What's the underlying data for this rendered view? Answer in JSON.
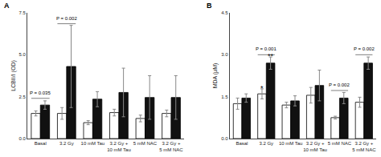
{
  "chart_data": [
    {
      "type": "bar",
      "title": "A",
      "categories": [
        "Basal",
        "3.2 Gy",
        "10 mM Tau",
        "3.2 Gy +\n10 mM Tau",
        "5 mM NAC",
        "3.2 Gy +\n5 mM NAC"
      ],
      "series": [
        {
          "color": "#ffffff",
          "values": [
            1.5,
            1.5,
            0.95,
            1.55,
            1.2,
            1.5
          ],
          "errors": [
            0.15,
            0.35,
            0.12,
            0.2,
            0.2,
            0.2
          ]
        },
        {
          "color": "#111111",
          "values": [
            2.0,
            4.3,
            2.35,
            2.75,
            2.45,
            2.45
          ],
          "errors": [
            0.25,
            2.45,
            0.45,
            1.45,
            1.3,
            1.3
          ]
        }
      ],
      "y_label": "LCBII/I (OD)",
      "ylim": [
        0,
        7.5
      ],
      "yticks": [
        {
          "value": 0,
          "label": "0.0"
        },
        2.5,
        {
          "value": 5,
          "label": "5.0"
        },
        7.5
      ],
      "grid": false,
      "annotations": [
        {
          "text": "P = 0.035",
          "category": "Basal",
          "y": 2.4
        },
        {
          "text": "P = 0.002",
          "category": "3.2 Gy",
          "y": 6.85
        }
      ]
    },
    {
      "type": "bar",
      "title": "B",
      "categories": [
        "Basal",
        "3.2 Gy",
        "10 mM Tau",
        "3.2 Gy +\n10 mM Tau",
        "5 mM NAC",
        "3.2 Gy +\n5 mM NAC"
      ],
      "series": [
        {
          "color": "#ffffff",
          "values": [
            1.25,
            1.6,
            1.2,
            1.55,
            0.75,
            1.3
          ],
          "errors": [
            0.2,
            0.18,
            0.1,
            0.28,
            0.05,
            0.18
          ]
        },
        {
          "color": "#111111",
          "values": [
            1.45,
            2.7,
            1.35,
            1.9,
            1.45,
            2.7
          ],
          "errors": [
            0.15,
            0.22,
            0.18,
            0.55,
            0.2,
            0.22
          ]
        }
      ],
      "y_label": "MDA (μM)",
      "ylim": [
        0,
        4.5
      ],
      "yticks": [
        {
          "value": 0,
          "label": "0.0"
        },
        1.5,
        {
          "value": 3,
          "label": "3.0"
        },
        4.5
      ],
      "grid": false,
      "annotations": [
        {
          "text": "P = 0.001",
          "category": "3.2 Gy",
          "y": 3.0
        },
        {
          "text": "*",
          "category": "3.2 Gy",
          "y": 1.82,
          "series": 0
        },
        {
          "text": "**",
          "category": "3.2 Gy",
          "y": 2.95,
          "series": 1
        },
        {
          "text": "P = 0.002",
          "category": "5 mM NAC",
          "y": 1.72
        },
        {
          "text": "P = 0.002",
          "category": "3.2 Gy +\n5 mM NAC",
          "y": 3.0
        }
      ]
    }
  ]
}
